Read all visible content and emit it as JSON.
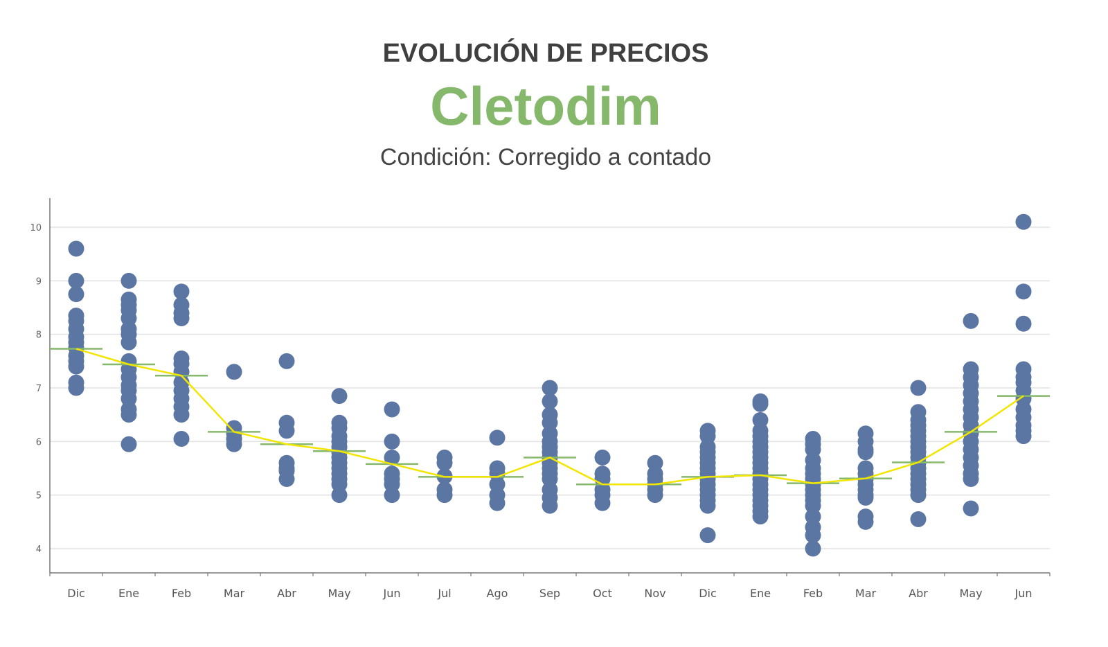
{
  "header": {
    "title": "EVOLUCIÓN DE PRECIOS",
    "product": "Cletodim",
    "condition": "Condición: Corregido a contado"
  },
  "chart_data": {
    "type": "scatter",
    "title": "EVOLUCIÓN DE PRECIOS",
    "subtitle": "Cletodim — Condición: Corregido a contado",
    "xlabel": "",
    "ylabel": "",
    "ylim": [
      3.55,
      10.55
    ],
    "yticks": [
      4,
      5,
      6,
      7,
      8,
      9,
      10
    ],
    "grid": true,
    "legend": "none",
    "colors": {
      "points": "#5b76a3",
      "average_line": "#f2e500",
      "average_ticks": "#86b86b",
      "grid": "#e2e2e2",
      "axis": "#777777"
    },
    "categories": [
      "Dic",
      "Ene",
      "Feb",
      "Mar",
      "Abr",
      "May",
      "Jun",
      "Jul",
      "Ago",
      "Sep",
      "Oct",
      "Nov",
      "Dic",
      "Ene",
      "Feb",
      "Mar",
      "Abr",
      "May",
      "Jun"
    ],
    "series": [
      {
        "name": "Precios",
        "type": "scatter",
        "values": [
          [
            9.6,
            9.0,
            8.75,
            8.35,
            8.25,
            8.1,
            7.95,
            7.85,
            7.75,
            7.6,
            7.5,
            7.4,
            7.1,
            7.0
          ],
          [
            9.0,
            8.65,
            8.55,
            8.45,
            8.3,
            8.1,
            8.0,
            7.85,
            7.5,
            7.35,
            7.2,
            7.05,
            6.95,
            6.8,
            6.6,
            6.5,
            5.95
          ],
          [
            8.8,
            8.55,
            8.4,
            8.3,
            7.55,
            7.45,
            7.3,
            7.1,
            6.95,
            6.8,
            6.65,
            6.5,
            6.05
          ],
          [
            7.3,
            6.25,
            6.15,
            6.05,
            5.95
          ],
          [
            7.5,
            6.35,
            6.2,
            5.6,
            5.5,
            5.45,
            5.3
          ],
          [
            6.85,
            6.35,
            6.25,
            6.1,
            6.0,
            5.9,
            5.8,
            5.7,
            5.6,
            5.5,
            5.4,
            5.3,
            5.2,
            5.0
          ],
          [
            6.6,
            6.0,
            5.7,
            5.4,
            5.3,
            5.2,
            5.0
          ],
          [
            5.7,
            5.6,
            5.35,
            5.1,
            5.0
          ],
          [
            6.07,
            5.5,
            5.4,
            5.2,
            5.0,
            4.85
          ],
          [
            7.0,
            6.75,
            6.5,
            6.35,
            6.15,
            6.0,
            5.9,
            5.8,
            5.7,
            5.6,
            5.5,
            5.4,
            5.3,
            5.1,
            4.95,
            4.8
          ],
          [
            5.7,
            5.4,
            5.3,
            5.1,
            5.0,
            4.85
          ],
          [
            5.6,
            5.4,
            5.3,
            5.2,
            5.1,
            5.0
          ],
          [
            6.2,
            6.1,
            5.9,
            5.8,
            5.7,
            5.6,
            5.5,
            5.4,
            5.3,
            5.2,
            5.1,
            5.0,
            4.9,
            4.8,
            4.25
          ],
          [
            6.75,
            6.7,
            6.4,
            6.2,
            6.1,
            6.0,
            5.9,
            5.8,
            5.7,
            5.6,
            5.5,
            5.4,
            5.3,
            5.2,
            5.1,
            5.0,
            4.9,
            4.8,
            4.7,
            4.6
          ],
          [
            6.05,
            5.95,
            5.85,
            5.65,
            5.5,
            5.4,
            5.3,
            5.2,
            5.1,
            5.0,
            4.9,
            4.8,
            4.6,
            4.4,
            4.25,
            4.0
          ],
          [
            6.15,
            6.0,
            5.85,
            5.8,
            5.5,
            5.4,
            5.3,
            5.2,
            5.1,
            5.0,
            4.95,
            4.6,
            4.5
          ],
          [
            7.0,
            6.55,
            6.4,
            6.3,
            6.2,
            6.1,
            6.0,
            5.9,
            5.8,
            5.7,
            5.6,
            5.5,
            5.4,
            5.3,
            5.2,
            5.1,
            5.0,
            4.55
          ],
          [
            8.25,
            7.35,
            7.2,
            7.05,
            6.9,
            6.75,
            6.6,
            6.45,
            6.3,
            6.15,
            6.0,
            5.85,
            5.7,
            5.55,
            5.4,
            5.3,
            4.75
          ],
          [
            10.1,
            8.8,
            8.2,
            7.35,
            7.2,
            7.1,
            6.95,
            6.8,
            6.6,
            6.45,
            6.3,
            6.2,
            6.1
          ]
        ]
      },
      {
        "name": "Promedio",
        "type": "line",
        "values": [
          7.73,
          7.44,
          7.23,
          6.18,
          5.95,
          5.82,
          5.58,
          5.34,
          5.34,
          5.7,
          5.2,
          5.2,
          5.34,
          5.37,
          5.22,
          5.31,
          5.61,
          6.18,
          6.85
        ]
      }
    ]
  }
}
